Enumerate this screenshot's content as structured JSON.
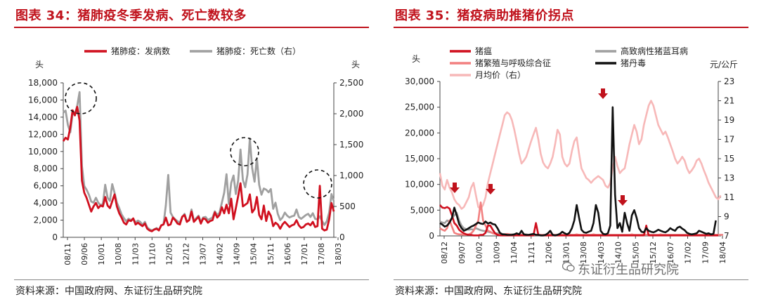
{
  "panels": {
    "left": {
      "title": "图表 34：猪肺疫冬季发病、死亡数较多",
      "source": "资料来源：中国政府网、东证衍生品研究院"
    },
    "right": {
      "title": "图表 35：猪疫病助推猪价拐点",
      "source": "资料来源：中国政府网、东证衍生品研究院"
    }
  },
  "watermark": "东证衍生品研究院",
  "colors": {
    "title_red": "#c0121c",
    "series_red": "#d0101f",
    "series_gray": "#a0a0a0",
    "series_black": "#111111",
    "series_pink": "#f28080",
    "series_light_pink": "#f7b8b8"
  },
  "chart_data": [
    {
      "type": "line",
      "left_unit": "头",
      "right_unit": "头",
      "legend_position": "top",
      "grid": false,
      "x_ticks": [
        "08/11",
        "09/06",
        "10/01",
        "10/08",
        "11/03",
        "11/10",
        "12/05",
        "12/12",
        "13/07",
        "14/02",
        "14/09",
        "15/04",
        "15/11",
        "16/06",
        "17/01",
        "17/08",
        "18/03"
      ],
      "ylim_left": [
        0,
        18000
      ],
      "y_ticks_left": [
        "0",
        "2,000",
        "4,000",
        "6,000",
        "8,000",
        "10,000",
        "12,000",
        "14,000",
        "16,000",
        "18,000"
      ],
      "ylim_right": [
        0,
        2500
      ],
      "y_ticks_right": [
        "0",
        "500",
        "1,000",
        "1,500",
        "2,000",
        "2,500"
      ],
      "series": [
        {
          "name": "猪肺疫：发病数",
          "axis": "left",
          "color": "#d0101f",
          "values": [
            11200,
            11600,
            11400,
            12800,
            14800,
            14200,
            15200,
            13600,
            6600,
            5200,
            4600,
            3800,
            3000,
            3600,
            4000,
            3400,
            3700,
            3600,
            4700,
            3700,
            3400,
            4200,
            5000,
            3600,
            2800,
            2300,
            1700,
            1500,
            2000,
            1900,
            2200,
            1500,
            1700,
            1500,
            1300,
            1600,
            1000,
            800,
            700,
            900,
            1000,
            800,
            1400,
            1500,
            2300,
            1400,
            1500,
            2300,
            2000,
            1600,
            1500,
            2400,
            2600,
            1800,
            2000,
            3000,
            1800,
            2100,
            2400,
            1600,
            2200,
            2100,
            1700,
            1900,
            2000,
            2900,
            2300,
            2600,
            3500,
            2800,
            3800,
            2800,
            4500,
            2100,
            3400,
            4800,
            6300,
            3600,
            3800,
            4000,
            5000,
            2900,
            3300,
            4700,
            2600,
            2100,
            3700,
            1900,
            3000,
            2500,
            1300,
            1700,
            1500,
            1000,
            1500,
            1800,
            1500,
            1200,
            1400,
            1500,
            2000,
            1400,
            1100,
            1200,
            1500,
            1600,
            1400,
            1800,
            1200,
            1300,
            6000,
            1000,
            800,
            900,
            2100,
            4000,
            3000
          ]
        },
        {
          "name": "猪肺疫：死亡数（右）",
          "axis": "right",
          "color": "#a0a0a0",
          "values": [
            2020,
            2050,
            1820,
            1700,
            2000,
            2000,
            2130,
            2350,
            1150,
            830,
            770,
            690,
            580,
            560,
            640,
            560,
            520,
            540,
            850,
            640,
            590,
            860,
            720,
            560,
            470,
            370,
            310,
            260,
            300,
            280,
            300,
            240,
            270,
            250,
            200,
            250,
            160,
            130,
            110,
            130,
            150,
            120,
            190,
            210,
            520,
            1010,
            400,
            330,
            290,
            260,
            240,
            330,
            380,
            260,
            280,
            450,
            260,
            310,
            350,
            250,
            320,
            330,
            280,
            300,
            320,
            420,
            360,
            400,
            560,
            720,
            1020,
            540,
            880,
            1000,
            700,
            920,
            1420,
            930,
            810,
            1020,
            1600,
            1120,
            900,
            1280,
            850,
            690,
            790,
            770,
            730,
            780,
            460,
            560,
            380,
            280,
            320,
            400,
            350,
            320,
            340,
            350,
            450,
            330,
            300,
            330,
            360,
            380,
            330,
            390,
            300,
            290,
            340,
            260,
            200,
            260,
            400,
            700,
            580
          ]
        }
      ]
    },
    {
      "type": "line",
      "left_unit": "头",
      "right_unit": "元/公斤",
      "legend_position": "top",
      "grid": false,
      "x_ticks": [
        "08/12",
        "09/07",
        "10/02",
        "10/09",
        "11/04",
        "11/11",
        "12/06",
        "13/01",
        "13/08",
        "14/03",
        "14/10",
        "15/05",
        "15/12",
        "16/07",
        "17/02",
        "17/09",
        "18/04"
      ],
      "ylim_left": [
        0,
        30000
      ],
      "y_ticks_left": [
        "0",
        "5,000",
        "10,000",
        "15,000",
        "20,000",
        "25,000",
        "30,000"
      ],
      "ylim_right": [
        7,
        23
      ],
      "y_ticks_right": [
        "7",
        "9",
        "11",
        "13",
        "15",
        "17",
        "19",
        "21",
        "23"
      ],
      "series": [
        {
          "name": "猪瘟",
          "axis": "left",
          "color": "#d0101f",
          "values": [
            6000,
            5500,
            5400,
            5600,
            5300,
            4000,
            2500,
            2000,
            1200,
            800,
            500,
            300,
            200,
            200,
            100,
            100,
            100,
            200,
            200,
            600,
            2000,
            2000,
            1200,
            500,
            200,
            100,
            100,
            100,
            100,
            100,
            100,
            100,
            100,
            100,
            100,
            100,
            100,
            100,
            100,
            100,
            2500,
            200,
            100,
            100,
            100,
            100,
            100,
            100,
            100,
            100,
            100,
            100,
            100,
            100,
            100,
            100,
            100,
            100,
            100,
            100,
            100,
            100,
            100,
            100,
            100,
            100,
            100,
            100,
            100,
            100,
            100,
            100,
            100,
            100,
            100,
            100,
            100,
            100,
            100,
            100,
            100,
            100,
            100,
            100,
            100,
            100,
            2000,
            100,
            100,
            100,
            100,
            100,
            100,
            100,
            100,
            100,
            100,
            100,
            100,
            100,
            100,
            100,
            100,
            100,
            100,
            100,
            100,
            100,
            100,
            100,
            100,
            100,
            100,
            100,
            100,
            100,
            100
          ]
        },
        {
          "name": "高致病性猪蓝耳病",
          "axis": "left",
          "color": "#a0a0a0",
          "values": [
            2800,
            2600,
            2500,
            3000,
            2800,
            3500,
            4000,
            4500,
            3000,
            2000,
            1500,
            1300,
            1200,
            1300,
            1200,
            1500,
            1300,
            1100,
            1000,
            900,
            800,
            700,
            600,
            500,
            500,
            400,
            400,
            300,
            300,
            300,
            300,
            300,
            300,
            300,
            300,
            300,
            300,
            200,
            200,
            200,
            200,
            200,
            200,
            200,
            200,
            200,
            200,
            200,
            200,
            200,
            200,
            200,
            200,
            200,
            200,
            200,
            200,
            200,
            200,
            200,
            200,
            200,
            200,
            200,
            200,
            200,
            200,
            200,
            200,
            200,
            200,
            200,
            200,
            200,
            200,
            200,
            200,
            200,
            200,
            200,
            200,
            200,
            200,
            200,
            200,
            200,
            200,
            200,
            200,
            200,
            200,
            200,
            200,
            200,
            200,
            200,
            200,
            200,
            200,
            200,
            200,
            200,
            200,
            200,
            200,
            200,
            200,
            200,
            200,
            200,
            200,
            200,
            200,
            200,
            200,
            200,
            200,
            200,
            200
          ]
        },
        {
          "name": "猪繁殖与呼吸综合征",
          "axis": "left",
          "color": "#f28080",
          "values": [
            1500,
            1200,
            1000,
            1500,
            3000,
            1800,
            600,
            400,
            300,
            300,
            200,
            200,
            300,
            500,
            1000,
            2000,
            3000,
            6500,
            3000,
            2000,
            1000,
            800,
            500,
            400,
            300,
            200,
            200,
            300,
            400,
            300,
            200,
            200,
            200,
            300,
            200,
            200,
            200,
            200,
            200,
            200,
            200,
            200,
            200,
            200,
            200,
            200,
            300,
            200,
            200,
            200,
            200,
            200,
            200,
            300,
            200,
            200,
            200,
            300,
            200,
            200,
            200,
            200,
            200,
            200,
            300,
            200,
            200,
            200,
            200,
            200,
            200,
            200,
            200,
            200,
            200,
            200,
            200,
            200,
            200,
            200,
            300,
            200,
            200,
            200,
            200,
            300,
            200,
            200,
            200,
            200,
            200,
            200,
            300,
            200,
            200,
            200,
            200,
            200,
            200,
            200,
            200,
            200,
            200,
            200,
            200,
            200,
            200,
            200,
            200,
            200,
            200,
            200,
            200,
            200,
            200,
            200,
            200,
            200,
            200
          ]
        },
        {
          "name": "猪丹毒",
          "axis": "left",
          "color": "#111111",
          "values": [
            2500,
            2200,
            1800,
            2000,
            2600,
            3500,
            5500,
            4000,
            2300,
            1500,
            1000,
            1200,
            1500,
            1800,
            2000,
            2300,
            2600,
            2400,
            2300,
            2800,
            2400,
            2600,
            2300,
            2200,
            1500,
            600,
            300,
            300,
            200,
            200,
            200,
            300,
            500,
            300,
            1000,
            300,
            200,
            200,
            300,
            400,
            200,
            200,
            100,
            100,
            200,
            500,
            1000,
            200,
            100,
            200,
            400,
            800,
            500,
            300,
            600,
            1500,
            3000,
            6000,
            3500,
            1200,
            700,
            600,
            800,
            1000,
            2500,
            6000,
            4500,
            1000,
            400,
            300,
            500,
            2000,
            25000,
            8000,
            1500,
            2500,
            800,
            4500,
            2500,
            1000,
            4000,
            5000,
            3500,
            1500,
            800,
            700,
            1500,
            1000,
            800,
            700,
            900,
            1200,
            1000,
            800,
            700,
            1000,
            1500,
            1200,
            1000,
            1600,
            1800,
            1400,
            1100,
            600,
            400,
            300,
            400,
            500,
            1000,
            800,
            600,
            400,
            500,
            300,
            400,
            3000
          ]
        },
        {
          "name": "月均价（右）",
          "axis": "right",
          "color": "#f7b8b8",
          "values": [
            13.5,
            12.2,
            11.8,
            12.8,
            12.0,
            11.5,
            10.8,
            10.4,
            10.2,
            9.8,
            10.0,
            10.5,
            11.0,
            12.0,
            12.5,
            11.2,
            10.0,
            9.8,
            10.2,
            11.0,
            12.5,
            13.5,
            14.5,
            15.5,
            16.5,
            17.5,
            18.5,
            19.5,
            19.8,
            19.6,
            19.0,
            18.0,
            16.8,
            15.5,
            14.5,
            14.8,
            15.2,
            16.0,
            16.8,
            17.5,
            18.2,
            17.0,
            15.5,
            14.6,
            14.2,
            14.0,
            14.5,
            15.2,
            16.5,
            18.0,
            17.5,
            15.2,
            14.5,
            14.2,
            14.5,
            15.8,
            16.8,
            17.2,
            15.5,
            14.0,
            13.5,
            13.0,
            12.8,
            12.5,
            12.8,
            13.0,
            13.2,
            13.0,
            12.8,
            12.2,
            12.0,
            12.5,
            14.0,
            15.2,
            14.2,
            13.5,
            13.8,
            14.0,
            15.2,
            16.5,
            17.5,
            18.5,
            17.8,
            16.5,
            17.0,
            18.5,
            19.5,
            20.5,
            21.0,
            20.5,
            19.5,
            18.5,
            18.0,
            17.5,
            17.8,
            17.2,
            16.5,
            15.8,
            15.0,
            14.5,
            14.8,
            15.2,
            14.8,
            14.0,
            13.5,
            13.8,
            14.2,
            14.8,
            15.0,
            14.5,
            13.8,
            13.2,
            12.5,
            12.0,
            11.5,
            11.0,
            10.8,
            11.2
          ]
        }
      ]
    }
  ]
}
